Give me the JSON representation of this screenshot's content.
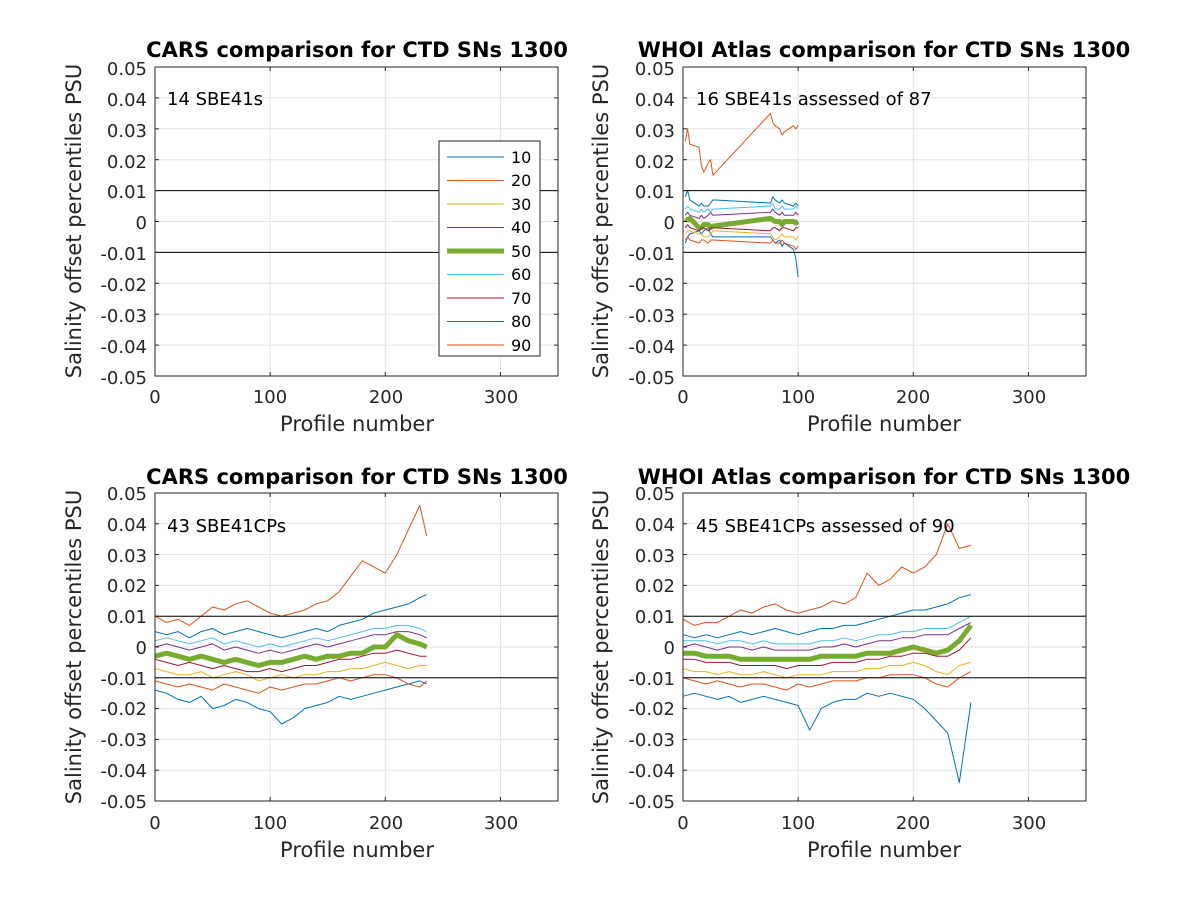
{
  "colors": {
    "10": "#0072bd",
    "20": "#d95319",
    "30": "#edb120",
    "40": "#7e2f8e",
    "50": "#77ac30",
    "60": "#4dbeee",
    "70": "#a2142f",
    "80": "#0072bd",
    "90": "#d95319"
  },
  "legend": {
    "entries": [
      "10",
      "20",
      "30",
      "40",
      "50",
      "60",
      "70",
      "80",
      "90"
    ]
  },
  "chart_data": [
    {
      "type": "line",
      "title": "CARS comparison for CTD SNs 1300",
      "annotation": "14 SBE41s",
      "xlabel": "Profile number",
      "ylabel": "Salinity offset percentiles PSU",
      "xlim": [
        0,
        350
      ],
      "ylim": [
        -0.05,
        0.05
      ],
      "xticks": [
        "0",
        "100",
        "200",
        "300"
      ],
      "yticks": [
        "-0.05",
        "-0.04",
        "-0.03",
        "-0.02",
        "-0.01",
        "0",
        "0.01",
        "0.02",
        "0.03",
        "0.04",
        "0.05"
      ],
      "reference_lines": [
        0.01,
        -0.01
      ],
      "grid": true,
      "legend_position": "east",
      "series": []
    },
    {
      "type": "line",
      "title": "WHOI Atlas comparison for CTD SNs 1300",
      "annotation": "16 SBE41s assessed of 87",
      "xlabel": "Profile number",
      "ylabel": "Salinity offset percentiles PSU",
      "xlim": [
        0,
        350
      ],
      "ylim": [
        -0.05,
        0.05
      ],
      "xticks": [
        "0",
        "100",
        "200",
        "300"
      ],
      "yticks": [
        "-0.05",
        "-0.04",
        "-0.03",
        "-0.02",
        "-0.01",
        "0",
        "0.01",
        "0.02",
        "0.03",
        "0.04",
        "0.05"
      ],
      "reference_lines": [
        0.01,
        -0.01
      ],
      "grid": true,
      "x": [
        2,
        4,
        6,
        14,
        16,
        18,
        22,
        24,
        26,
        76,
        78,
        80,
        84,
        86,
        88,
        96,
        98,
        100
      ],
      "series": [
        {
          "name": "10",
          "values": [
            -0.007,
            -0.005,
            -0.004,
            -0.003,
            -0.004,
            -0.003,
            -0.002,
            -0.004,
            -0.005,
            -0.005,
            -0.006,
            -0.007,
            -0.006,
            -0.008,
            -0.007,
            -0.009,
            -0.012,
            -0.018
          ]
        },
        {
          "name": "20",
          "values": [
            0.026,
            0.03,
            0.025,
            0.024,
            0.018,
            0.016,
            0.019,
            0.02,
            0.015,
            0.035,
            0.032,
            0.031,
            0.03,
            0.028,
            0.029,
            0.031,
            0.03,
            0.031
          ]
        },
        {
          "name": "30",
          "values": [
            -0.004,
            -0.003,
            -0.003,
            -0.004,
            -0.004,
            -0.005,
            -0.005,
            -0.004,
            -0.003,
            -0.004,
            -0.005,
            -0.006,
            -0.005,
            -0.004,
            -0.005,
            -0.005,
            -0.006,
            -0.005
          ]
        },
        {
          "name": "40",
          "values": [
            0.002,
            0.003,
            0.002,
            0.001,
            0.002,
            0.001,
            0.002,
            0.003,
            0.002,
            0.003,
            0.004,
            0.003,
            0.002,
            0.003,
            0.002,
            0.002,
            0.003,
            0.002
          ]
        },
        {
          "name": "50",
          "values": [
            0.001,
            0.0005,
            0.001,
            -0.002,
            -0.002,
            -0.001,
            -0.001,
            -0.002,
            -0.0015,
            0.001,
            0.0005,
            0.0,
            0.0,
            -0.001,
            0.0,
            0.0,
            -0.0005,
            0.0
          ]
        },
        {
          "name": "60",
          "values": [
            0.004,
            0.005,
            0.004,
            0.003,
            0.004,
            0.003,
            0.004,
            0.003,
            0.004,
            0.005,
            0.006,
            0.004,
            0.004,
            0.005,
            0.004,
            0.004,
            0.005,
            0.004
          ]
        },
        {
          "name": "70",
          "values": [
            -0.002,
            -0.001,
            -0.002,
            -0.003,
            -0.002,
            -0.002,
            -0.003,
            -0.002,
            -0.002,
            -0.003,
            -0.002,
            -0.002,
            -0.003,
            -0.002,
            -0.002,
            -0.003,
            -0.002,
            -0.002
          ]
        },
        {
          "name": "80",
          "values": [
            0.008,
            0.01,
            0.007,
            0.005,
            0.006,
            0.005,
            0.005,
            0.006,
            0.007,
            0.006,
            0.008,
            0.007,
            0.006,
            0.007,
            0.006,
            0.005,
            0.006,
            0.005
          ]
        },
        {
          "name": "90",
          "values": [
            -0.006,
            -0.005,
            -0.006,
            -0.007,
            -0.006,
            -0.006,
            -0.007,
            -0.006,
            -0.006,
            -0.007,
            -0.006,
            -0.007,
            -0.007,
            -0.006,
            -0.007,
            -0.008,
            -0.009,
            -0.008
          ]
        }
      ]
    },
    {
      "type": "line",
      "title": "CARS comparison for CTD SNs 1300",
      "annotation": "43 SBE41CPs",
      "xlabel": "Profile number",
      "ylabel": "Salinity offset percentiles PSU",
      "xlim": [
        0,
        350
      ],
      "ylim": [
        -0.05,
        0.05
      ],
      "xticks": [
        "0",
        "100",
        "200",
        "300"
      ],
      "yticks": [
        "-0.05",
        "-0.04",
        "-0.03",
        "-0.02",
        "-0.01",
        "0",
        "0.01",
        "0.02",
        "0.03",
        "0.04",
        "0.05"
      ],
      "reference_lines": [
        0.01,
        -0.01
      ],
      "grid": true,
      "x": [
        0,
        10,
        20,
        30,
        40,
        50,
        60,
        70,
        80,
        90,
        100,
        110,
        120,
        130,
        140,
        150,
        160,
        170,
        180,
        190,
        200,
        210,
        220,
        230,
        236
      ],
      "series": [
        {
          "name": "10",
          "values": [
            0.005,
            0.004,
            0.005,
            0.003,
            0.005,
            0.006,
            0.004,
            0.005,
            0.006,
            0.005,
            0.004,
            0.003,
            0.004,
            0.005,
            0.006,
            0.005,
            0.007,
            0.008,
            0.009,
            0.011,
            0.012,
            0.013,
            0.014,
            0.016,
            0.017
          ]
        },
        {
          "name": "20",
          "values": [
            0.01,
            0.008,
            0.009,
            0.007,
            0.01,
            0.013,
            0.012,
            0.014,
            0.015,
            0.013,
            0.011,
            0.01,
            0.011,
            0.012,
            0.014,
            0.015,
            0.018,
            0.023,
            0.028,
            0.026,
            0.024,
            0.03,
            0.038,
            0.046,
            0.036
          ]
        },
        {
          "name": "30",
          "values": [
            -0.007,
            -0.008,
            -0.009,
            -0.009,
            -0.008,
            -0.01,
            -0.009,
            -0.008,
            -0.009,
            -0.011,
            -0.01,
            -0.009,
            -0.01,
            -0.009,
            -0.009,
            -0.008,
            -0.008,
            -0.007,
            -0.007,
            -0.006,
            -0.005,
            -0.006,
            -0.007,
            -0.006,
            -0.006
          ]
        },
        {
          "name": "40",
          "values": [
            0.0,
            0.001,
            0.0,
            -0.001,
            0.0,
            0.001,
            -0.001,
            0.0,
            -0.001,
            -0.002,
            -0.001,
            -0.002,
            -0.001,
            0.0,
            0.001,
            0.0,
            0.001,
            0.002,
            0.003,
            0.004,
            0.004,
            0.005,
            0.005,
            0.004,
            0.003
          ]
        },
        {
          "name": "50",
          "values": [
            -0.003,
            -0.002,
            -0.003,
            -0.004,
            -0.003,
            -0.004,
            -0.005,
            -0.004,
            -0.005,
            -0.006,
            -0.005,
            -0.005,
            -0.004,
            -0.003,
            -0.004,
            -0.003,
            -0.003,
            -0.002,
            -0.002,
            0.0,
            0.0,
            0.004,
            0.002,
            0.001,
            0.0
          ]
        },
        {
          "name": "60",
          "values": [
            0.002,
            0.003,
            0.002,
            0.001,
            0.002,
            0.003,
            0.001,
            0.002,
            0.001,
            0.0,
            0.001,
            0.0,
            0.001,
            0.002,
            0.003,
            0.002,
            0.003,
            0.004,
            0.005,
            0.006,
            0.006,
            0.007,
            0.007,
            0.006,
            0.005
          ]
        },
        {
          "name": "70",
          "values": [
            -0.004,
            -0.005,
            -0.006,
            -0.005,
            -0.006,
            -0.007,
            -0.006,
            -0.007,
            -0.008,
            -0.008,
            -0.007,
            -0.008,
            -0.007,
            -0.006,
            -0.006,
            -0.005,
            -0.004,
            -0.004,
            -0.003,
            -0.002,
            -0.002,
            -0.001,
            -0.002,
            -0.003,
            -0.003
          ]
        },
        {
          "name": "80",
          "values": [
            -0.014,
            -0.015,
            -0.017,
            -0.018,
            -0.016,
            -0.02,
            -0.019,
            -0.017,
            -0.018,
            -0.02,
            -0.021,
            -0.025,
            -0.023,
            -0.02,
            -0.019,
            -0.018,
            -0.016,
            -0.017,
            -0.016,
            -0.015,
            -0.014,
            -0.013,
            -0.012,
            -0.011,
            -0.012
          ]
        },
        {
          "name": "90",
          "values": [
            -0.011,
            -0.012,
            -0.013,
            -0.012,
            -0.013,
            -0.014,
            -0.012,
            -0.013,
            -0.014,
            -0.015,
            -0.013,
            -0.014,
            -0.013,
            -0.012,
            -0.012,
            -0.011,
            -0.01,
            -0.011,
            -0.01,
            -0.009,
            -0.009,
            -0.01,
            -0.012,
            -0.013,
            -0.011
          ]
        }
      ]
    },
    {
      "type": "line",
      "title": "WHOI Atlas comparison for CTD SNs 1300",
      "annotation": "45 SBE41CPs assessed of 90",
      "xlabel": "Profile number",
      "ylabel": "Salinity offset percentiles PSU",
      "xlim": [
        0,
        350
      ],
      "ylim": [
        -0.05,
        0.05
      ],
      "xticks": [
        "0",
        "100",
        "200",
        "300"
      ],
      "yticks": [
        "-0.05",
        "-0.04",
        "-0.03",
        "-0.02",
        "-0.01",
        "0",
        "0.01",
        "0.02",
        "0.03",
        "0.04",
        "0.05"
      ],
      "reference_lines": [
        0.01,
        -0.01
      ],
      "grid": true,
      "x": [
        0,
        10,
        20,
        30,
        40,
        50,
        60,
        70,
        80,
        90,
        100,
        110,
        120,
        130,
        140,
        150,
        160,
        170,
        180,
        190,
        200,
        210,
        220,
        230,
        240,
        250
      ],
      "series": [
        {
          "name": "10",
          "values": [
            0.004,
            0.003,
            0.004,
            0.003,
            0.004,
            0.005,
            0.004,
            0.005,
            0.006,
            0.005,
            0.004,
            0.005,
            0.006,
            0.006,
            0.007,
            0.007,
            0.008,
            0.009,
            0.01,
            0.011,
            0.012,
            0.012,
            0.013,
            0.014,
            0.016,
            0.017
          ]
        },
        {
          "name": "20",
          "values": [
            0.009,
            0.007,
            0.008,
            0.008,
            0.01,
            0.012,
            0.011,
            0.013,
            0.014,
            0.012,
            0.011,
            0.012,
            0.013,
            0.015,
            0.014,
            0.016,
            0.024,
            0.02,
            0.022,
            0.026,
            0.024,
            0.026,
            0.03,
            0.04,
            0.032,
            0.033
          ]
        },
        {
          "name": "30",
          "values": [
            -0.007,
            -0.008,
            -0.008,
            -0.009,
            -0.008,
            -0.009,
            -0.009,
            -0.008,
            -0.009,
            -0.01,
            -0.009,
            -0.009,
            -0.009,
            -0.008,
            -0.008,
            -0.008,
            -0.007,
            -0.007,
            -0.006,
            -0.006,
            -0.005,
            -0.006,
            -0.008,
            -0.009,
            -0.006,
            -0.005
          ]
        },
        {
          "name": "40",
          "values": [
            0.0,
            0.001,
            0.0,
            -0.001,
            0.0,
            0.0,
            -0.001,
            0.0,
            -0.001,
            -0.001,
            -0.001,
            -0.001,
            0.0,
            0.0,
            0.001,
            0.0,
            0.001,
            0.002,
            0.002,
            0.003,
            0.003,
            0.004,
            0.004,
            0.004,
            0.006,
            0.008
          ]
        },
        {
          "name": "50",
          "values": [
            -0.002,
            -0.002,
            -0.003,
            -0.003,
            -0.003,
            -0.004,
            -0.004,
            -0.004,
            -0.004,
            -0.004,
            -0.004,
            -0.004,
            -0.003,
            -0.003,
            -0.003,
            -0.003,
            -0.002,
            -0.002,
            -0.002,
            -0.001,
            0.0,
            -0.001,
            -0.002,
            -0.001,
            0.002,
            0.007
          ]
        },
        {
          "name": "60",
          "values": [
            0.002,
            0.002,
            0.002,
            0.001,
            0.002,
            0.002,
            0.001,
            0.002,
            0.001,
            0.001,
            0.001,
            0.001,
            0.002,
            0.002,
            0.003,
            0.002,
            0.003,
            0.004,
            0.004,
            0.005,
            0.005,
            0.006,
            0.006,
            0.006,
            0.008,
            0.01
          ]
        },
        {
          "name": "70",
          "values": [
            -0.004,
            -0.004,
            -0.005,
            -0.005,
            -0.005,
            -0.006,
            -0.006,
            -0.006,
            -0.006,
            -0.007,
            -0.006,
            -0.006,
            -0.006,
            -0.005,
            -0.005,
            -0.005,
            -0.004,
            -0.004,
            -0.003,
            -0.003,
            -0.002,
            -0.002,
            -0.003,
            -0.003,
            -0.001,
            0.003
          ]
        },
        {
          "name": "80",
          "values": [
            -0.016,
            -0.015,
            -0.016,
            -0.017,
            -0.016,
            -0.018,
            -0.017,
            -0.016,
            -0.017,
            -0.018,
            -0.019,
            -0.027,
            -0.02,
            -0.018,
            -0.017,
            -0.017,
            -0.015,
            -0.016,
            -0.015,
            -0.016,
            -0.017,
            -0.02,
            -0.024,
            -0.028,
            -0.044,
            -0.018
          ]
        },
        {
          "name": "90",
          "values": [
            -0.01,
            -0.011,
            -0.012,
            -0.011,
            -0.012,
            -0.013,
            -0.012,
            -0.012,
            -0.013,
            -0.014,
            -0.012,
            -0.013,
            -0.012,
            -0.011,
            -0.011,
            -0.011,
            -0.01,
            -0.01,
            -0.009,
            -0.009,
            -0.009,
            -0.01,
            -0.012,
            -0.013,
            -0.01,
            -0.008
          ]
        }
      ]
    }
  ]
}
